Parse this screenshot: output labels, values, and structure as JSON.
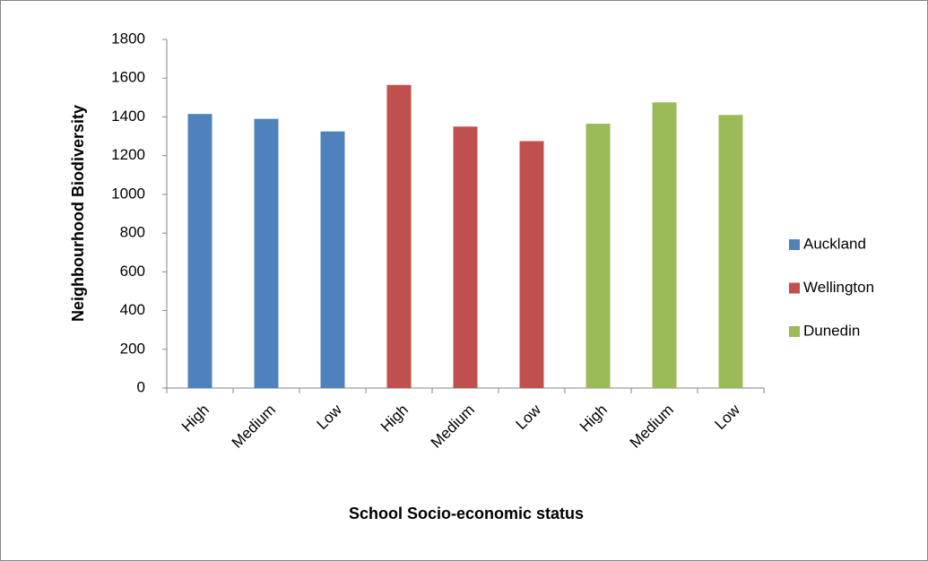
{
  "chart_data": {
    "type": "bar",
    "categories": [
      "High",
      "Medium",
      "Low",
      "High",
      "Medium",
      "Low",
      "High",
      "Medium",
      "Low"
    ],
    "series": [
      {
        "name": "Auckland",
        "color": "#4f81bd",
        "values": [
          1415,
          1390,
          1325,
          null,
          null,
          null,
          null,
          null,
          null
        ]
      },
      {
        "name": "Wellington",
        "color": "#c0504d",
        "values": [
          null,
          null,
          null,
          1565,
          1350,
          1275,
          null,
          null,
          null
        ]
      },
      {
        "name": "Dunedin",
        "color": "#9bbb59",
        "values": [
          null,
          null,
          null,
          null,
          null,
          null,
          1365,
          1475,
          1410
        ]
      }
    ],
    "x_label": "School Socio-economic status",
    "y_label": "Neighbourhood Biodiversity",
    "ylim": [
      0,
      1800
    ],
    "yticks": [
      0,
      200,
      400,
      600,
      800,
      1000,
      1200,
      1400,
      1600,
      1800
    ],
    "grid": false,
    "legend": "right"
  }
}
